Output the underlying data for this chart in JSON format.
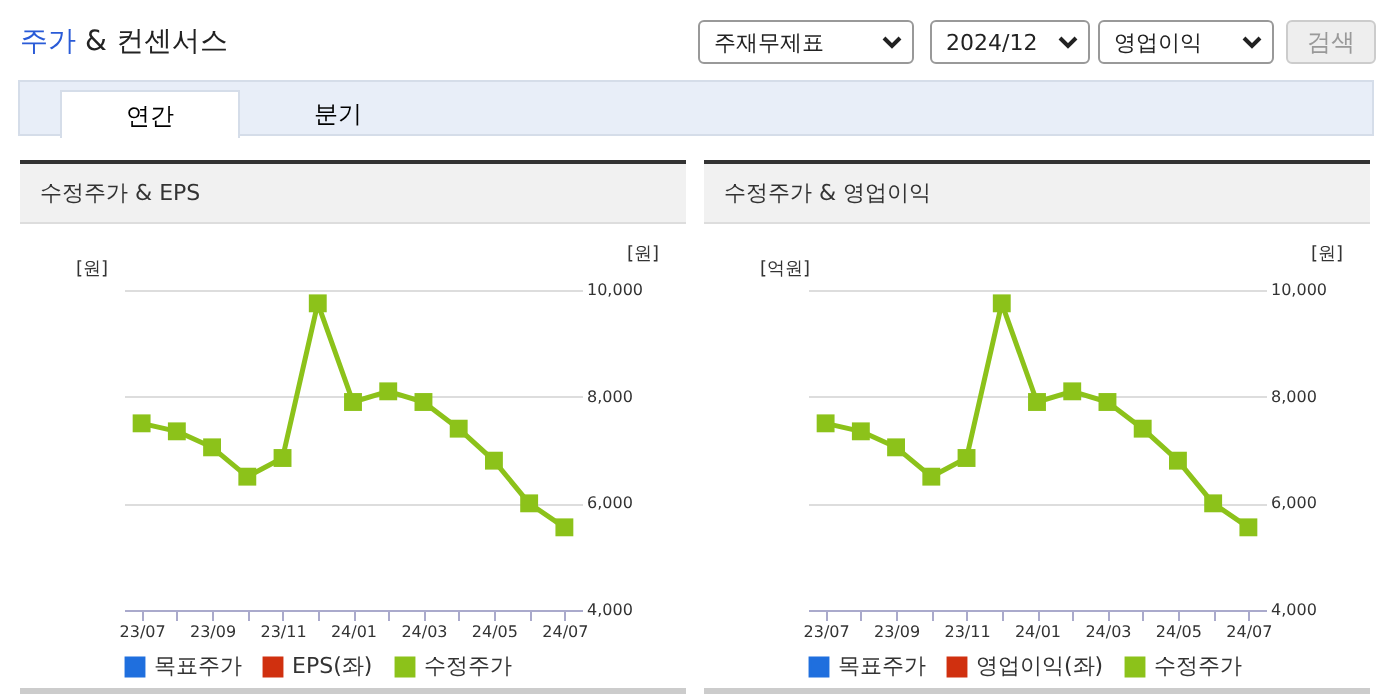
{
  "chart_data": [
    {
      "type": "other",
      "title": "주가 & 컨센서스",
      "annotations": [
        "주재무제표",
        "2024/12",
        "영업이익",
        "검색",
        "연간",
        "분기"
      ]
    },
    {
      "type": "line",
      "title": "수정주가 & EPS",
      "ylabel": "[원]",
      "y2label": "[원]",
      "categories": [
        "23/07",
        null,
        "23/09",
        null,
        "23/11",
        null,
        "24/01",
        null,
        "24/03",
        null,
        "24/05",
        null,
        "24/07"
      ],
      "series": [
        {
          "name": "목표주가",
          "color": "#1f6fde",
          "axis": "y",
          "values": [
            null,
            null,
            null,
            null,
            null,
            null,
            null,
            null,
            null,
            null,
            null,
            null,
            null
          ]
        },
        {
          "name": "EPS(좌)",
          "color": "#d0300f",
          "axis": "y",
          "values": [
            null,
            null,
            null,
            null,
            null,
            null,
            null,
            null,
            null,
            null,
            null,
            null,
            null
          ]
        },
        {
          "name": "수정주가",
          "color": "#8cc21a",
          "axis": "y2",
          "values": [
            7500,
            7350,
            7050,
            6500,
            6850,
            9750,
            7900,
            8100,
            7900,
            7400,
            6800,
            6000,
            5550
          ]
        }
      ],
      "y2lim": [
        4000,
        10000
      ],
      "y2ticks": [
        {
          "value": 4000,
          "label": "4,000"
        },
        {
          "value": 6000,
          "label": "6,000"
        },
        {
          "value": 8000,
          "label": "8,000"
        },
        {
          "value": 10000,
          "label": "10,000"
        }
      ],
      "grid": "y",
      "legend": "bottom",
      "marker": "square",
      "line_style": "solid"
    },
    {
      "type": "line",
      "title": "수정주가 & 영업이익",
      "ylabel": "[억원]",
      "y2label": "[원]",
      "categories": [
        "23/07",
        null,
        "23/09",
        null,
        "23/11",
        null,
        "24/01",
        null,
        "24/03",
        null,
        "24/05",
        null,
        "24/07"
      ],
      "series": [
        {
          "name": "목표주가",
          "color": "#1f6fde",
          "axis": "y",
          "values": [
            null,
            null,
            null,
            null,
            null,
            null,
            null,
            null,
            null,
            null,
            null,
            null,
            null
          ]
        },
        {
          "name": "영업이익(좌)",
          "color": "#d0300f",
          "axis": "y",
          "values": [
            null,
            null,
            null,
            null,
            null,
            null,
            null,
            null,
            null,
            null,
            null,
            null,
            null
          ]
        },
        {
          "name": "수정주가",
          "color": "#8cc21a",
          "axis": "y2",
          "values": [
            7500,
            7350,
            7050,
            6500,
            6850,
            9750,
            7900,
            8100,
            7900,
            7400,
            6800,
            6000,
            5550
          ]
        }
      ],
      "y2lim": [
        4000,
        10000
      ],
      "y2ticks": [
        {
          "value": 4000,
          "label": "4,000"
        },
        {
          "value": 6000,
          "label": "6,000"
        },
        {
          "value": 8000,
          "label": "8,000"
        },
        {
          "value": 10000,
          "label": "10,000"
        }
      ],
      "grid": "y",
      "legend": "bottom",
      "marker": "square",
      "line_style": "solid"
    }
  ]
}
